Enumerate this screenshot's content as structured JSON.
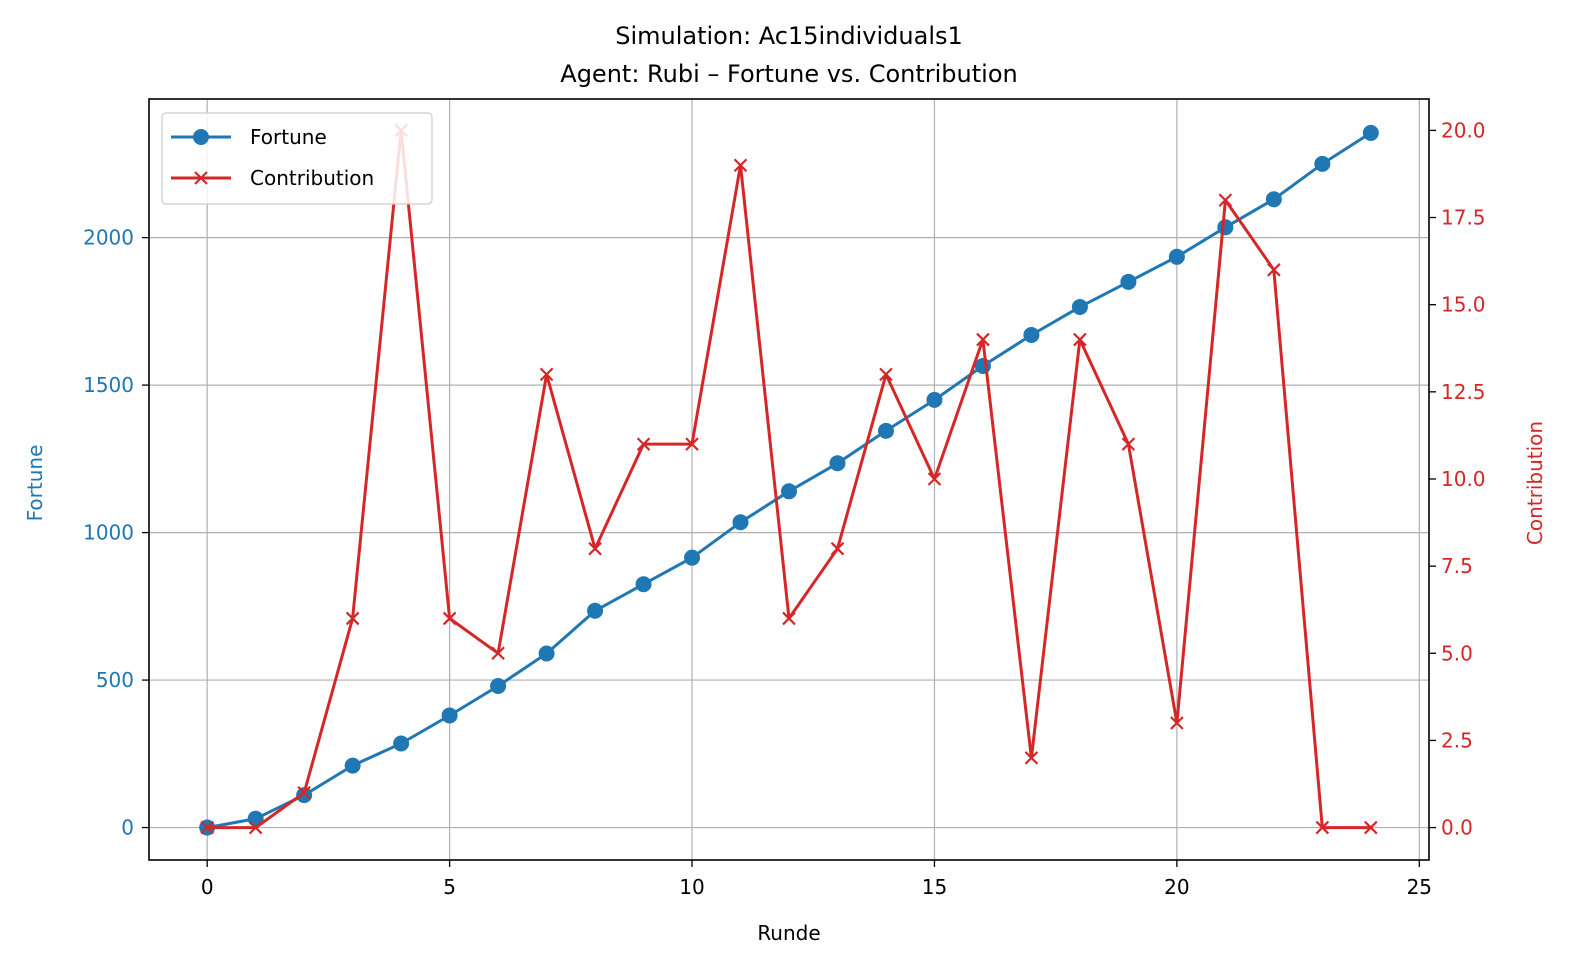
{
  "chart_data": {
    "type": "line",
    "title": "Simulation: Ac15individuals1",
    "subtitle": "Agent: Rubi – Fortune vs. Contribution",
    "xlabel": "Runde",
    "ylabel_left": "Fortune",
    "ylabel_right": "Contribution",
    "x": [
      0,
      1,
      2,
      3,
      4,
      5,
      6,
      7,
      8,
      9,
      10,
      11,
      12,
      13,
      14,
      15,
      16,
      17,
      18,
      19,
      20,
      21,
      22,
      23,
      24
    ],
    "xlim": [
      -1.2,
      25.2
    ],
    "ylim_left": [
      -110,
      2470
    ],
    "ylim_right": [
      -0.93,
      20.9
    ],
    "x_ticks": [
      "0",
      "5",
      "10",
      "15",
      "20",
      "25"
    ],
    "y_left_ticks": [
      "0",
      "500",
      "1000",
      "1500",
      "2000"
    ],
    "y_right_ticks": [
      "0.0",
      "2.5",
      "5.0",
      "7.5",
      "10.0",
      "12.5",
      "15.0",
      "17.5",
      "20.0"
    ],
    "grid": true,
    "legend_placement": "top-left",
    "series": [
      {
        "name": "Fortune",
        "axis": "left",
        "color": "#1f77b4",
        "marker": "circle",
        "values": [
          0,
          30,
          110,
          210,
          285,
          380,
          480,
          590,
          735,
          825,
          915,
          1035,
          1140,
          1235,
          1345,
          1450,
          1565,
          1670,
          1765,
          1850,
          1935,
          2035,
          2130,
          2250,
          2355
        ]
      },
      {
        "name": "Contribution",
        "axis": "right",
        "color": "#d62728",
        "marker": "x",
        "values": [
          0,
          0,
          1,
          6,
          20,
          6,
          5,
          13,
          8,
          11,
          11,
          19,
          6,
          8,
          13,
          10,
          14,
          2,
          14,
          11,
          3,
          18,
          16,
          0,
          0
        ]
      }
    ]
  }
}
